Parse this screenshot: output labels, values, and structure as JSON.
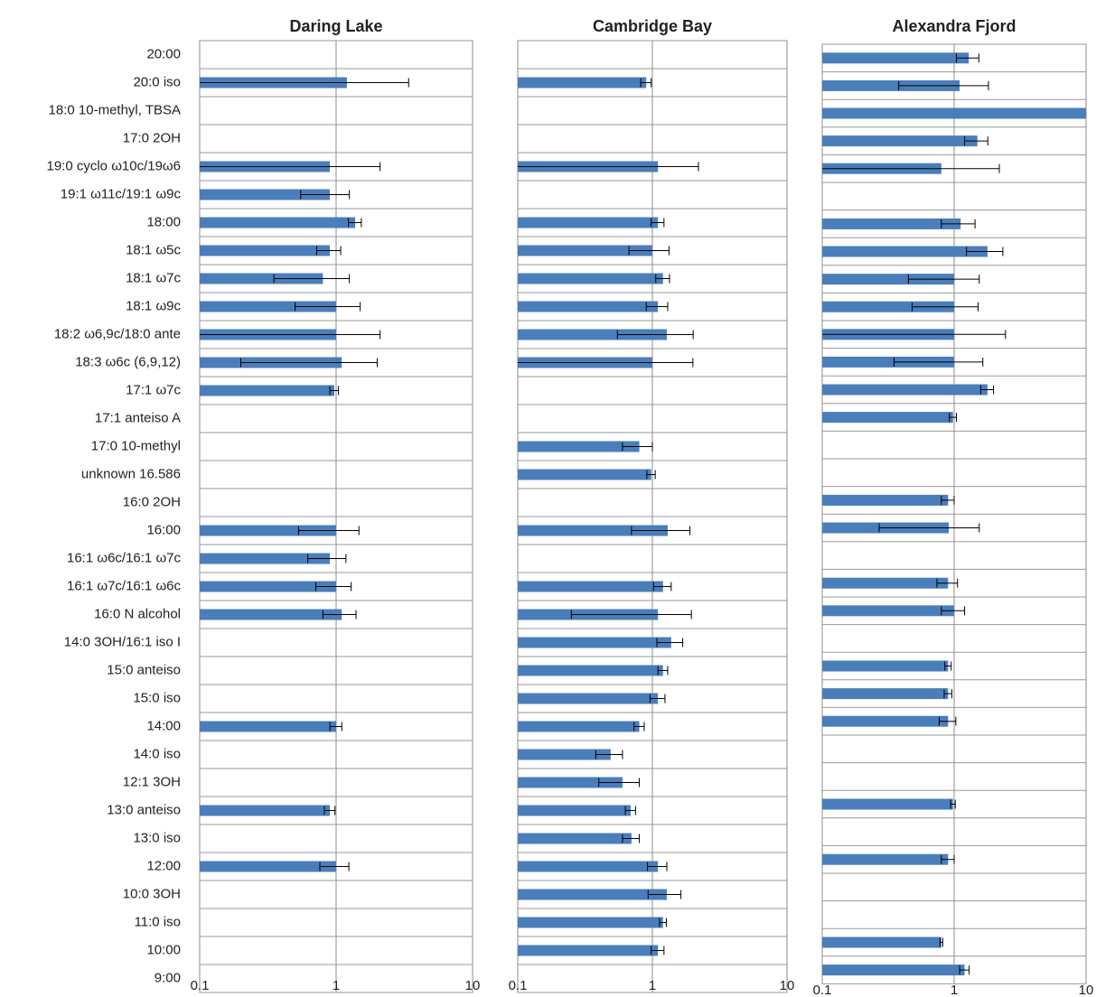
{
  "chart_data": [
    {
      "type": "bar",
      "orientation": "horizontal",
      "title": "Daring Lake",
      "categories": [
        "20:00",
        "20:0 iso",
        "18:0 10-methyl, TBSA",
        "17:0 2OH",
        "19:0 cyclo ω10c/19ω6",
        "19:1 ω11c/19:1 ω9c",
        "18:00",
        "18:1 ω5c",
        "18:1 ω7c",
        "18:1 ω9c",
        "18:2 ω6,9c/18:0 ante",
        "18:3 ω6c (6,9,12)",
        "17:1 ω7c",
        "17:1 anteiso A",
        "17:0 10-methyl",
        "unknown 16.586",
        "16:0 2OH",
        "16:00",
        "16:1 ω6c/16:1 ω7c",
        "16:1 ω7c/16:1 ω6c",
        "16:0 N alcohol",
        "14:0 3OH/16:1 iso I",
        "15:0 anteiso",
        "15:0 iso",
        "14:00",
        "14:0 iso",
        "12:1 3OH",
        "13:0 anteiso",
        "13:0 iso",
        "12:00",
        "10:0 3OH",
        "11:0 iso",
        "10:00",
        "9:00"
      ],
      "values": [
        null,
        1.2,
        null,
        null,
        0.9,
        0.9,
        1.38,
        0.9,
        0.8,
        1.0,
        1.0,
        1.1,
        0.97,
        null,
        null,
        null,
        null,
        1.0,
        0.9,
        1.0,
        1.1,
        null,
        null,
        null,
        1.0,
        null,
        null,
        0.9,
        null,
        1.0,
        null,
        null,
        null,
        null
      ],
      "errors": [
        null,
        2.2,
        null,
        null,
        1.2,
        0.35,
        0.15,
        0.18,
        0.45,
        0.5,
        1.1,
        0.9,
        0.07,
        null,
        null,
        null,
        null,
        0.47,
        0.28,
        0.29,
        0.3,
        null,
        null,
        null,
        0.1,
        null,
        null,
        0.08,
        null,
        0.24,
        null,
        null,
        null,
        null
      ],
      "color": "#4a7ebb",
      "xscale": "log",
      "xlim": [
        0.1,
        10
      ],
      "xticks": [
        0.1,
        1,
        10
      ],
      "grid": true
    },
    {
      "type": "bar",
      "orientation": "horizontal",
      "title": "Cambridge Bay",
      "values": [
        null,
        0.9,
        null,
        null,
        1.1,
        null,
        1.1,
        1.0,
        1.2,
        1.1,
        1.28,
        1.0,
        null,
        null,
        0.8,
        0.98,
        null,
        1.3,
        null,
        1.2,
        1.1,
        1.38,
        1.2,
        1.1,
        0.8,
        0.49,
        0.6,
        0.69,
        0.7,
        1.1,
        1.28,
        1.2,
        1.1,
        null
      ],
      "errors": [
        null,
        0.08,
        null,
        null,
        1.1,
        null,
        0.12,
        0.33,
        0.14,
        0.2,
        0.73,
        1.0,
        null,
        null,
        0.2,
        0.07,
        null,
        0.6,
        null,
        0.18,
        0.85,
        0.3,
        0.1,
        0.14,
        0.07,
        0.11,
        0.2,
        0.06,
        0.1,
        0.18,
        0.35,
        0.07,
        0.12,
        null
      ],
      "color": "#4a7ebb",
      "xscale": "log",
      "xlim": [
        0.1,
        10
      ],
      "xticks": [
        0.1,
        1,
        10
      ],
      "grid": true
    },
    {
      "type": "bar",
      "orientation": "horizontal",
      "title": "Alexandra Fjord",
      "values": [
        1.29,
        1.1,
        10,
        1.5,
        0.8,
        null,
        1.12,
        1.79,
        1.0,
        1.0,
        1.0,
        1.0,
        1.79,
        0.98,
        null,
        null,
        0.9,
        0.91,
        null,
        0.9,
        1.0,
        null,
        0.9,
        0.9,
        0.9,
        null,
        null,
        0.98,
        null,
        0.9,
        null,
        null,
        0.8,
        1.2
      ],
      "errors": [
        0.25,
        0.72,
        null,
        0.3,
        1.4,
        null,
        0.32,
        0.55,
        0.55,
        0.52,
        1.45,
        0.65,
        0.2,
        0.06,
        null,
        null,
        0.1,
        0.64,
        null,
        0.16,
        0.2,
        null,
        0.05,
        0.06,
        0.13,
        null,
        null,
        0.04,
        null,
        0.1,
        null,
        null,
        0.02,
        0.1
      ],
      "color": "#4a7ebb",
      "xscale": "log",
      "xlim": [
        0.1,
        10
      ],
      "xticks": [
        0.1,
        1,
        10
      ],
      "grid": true
    }
  ]
}
